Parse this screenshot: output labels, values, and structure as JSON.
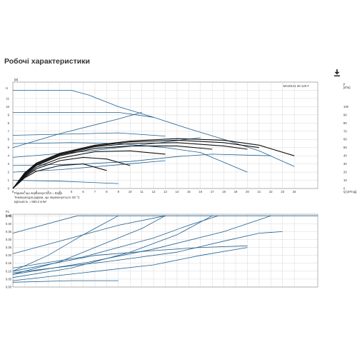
{
  "page": {
    "title": "Робочі характеристики",
    "download_icon": "download-icon"
  },
  "chart_data": [
    {
      "type": "line",
      "name": "head-flow",
      "xlabel": "Q [м³/год]",
      "ylabel_left": "H [м]",
      "ylabel_right": "p [кПа]",
      "legend_text": "MAGNA1 40-120 F",
      "x_ticks": [
        "0",
        "1",
        "2",
        "3",
        "4",
        "5",
        "6",
        "7",
        "8",
        "9",
        "10",
        "11",
        "12",
        "13",
        "14",
        "15",
        "16",
        "17",
        "18",
        "19",
        "20",
        "21",
        "22",
        "23",
        "24"
      ],
      "y_ticks": [
        "0",
        "1",
        "2",
        "3",
        "4",
        "5",
        "6",
        "7",
        "8",
        "9",
        "10",
        "11",
        "12",
        "13"
      ],
      "y2_ticks": [
        "0",
        "10",
        "20",
        "30",
        "40",
        "50",
        "60",
        "70",
        "80",
        "90",
        "100"
      ],
      "xlim": [
        0,
        26
      ],
      "ylim": [
        0,
        13
      ],
      "y2lim": [
        0,
        130
      ],
      "series": [
        {
          "points": [
            [
              0,
              12
            ],
            [
              5,
              12
            ],
            [
              6.5,
              11.4
            ],
            [
              9,
              10
            ],
            [
              12,
              8.7
            ],
            [
              15,
              7.3
            ],
            [
              18,
              6
            ],
            [
              21,
              4.6
            ],
            [
              24,
              2.7
            ]
          ],
          "color": "#1f5f8f"
        },
        {
          "points": [
            [
              0,
              9.3
            ],
            [
              9,
              9.3
            ],
            [
              12,
              8.7
            ]
          ],
          "color": "#1f5f8f"
        },
        {
          "points": [
            [
              0,
              5
            ],
            [
              4,
              6.7
            ],
            [
              9,
              8.5
            ],
            [
              11,
              9.3
            ]
          ],
          "color": "#1f5f8f"
        },
        {
          "points": [
            [
              0,
              6.5
            ],
            [
              9,
              6.8
            ],
            [
              13,
              6.4
            ]
          ],
          "color": "#1f5f8f"
        },
        {
          "points": [
            [
              0,
              5.5
            ],
            [
              5,
              5.6
            ],
            [
              9,
              5.5
            ],
            [
              13,
              5
            ],
            [
              16,
              4.4
            ],
            [
              20,
              2
            ]
          ],
          "color": "#1f5f8f"
        },
        {
          "points": [
            [
              0,
              3.8
            ],
            [
              6,
              4.5
            ],
            [
              12,
              5.5
            ],
            [
              16,
              6.2
            ]
          ],
          "color": "#1f5f8f"
        },
        {
          "points": [
            [
              0,
              2.8
            ],
            [
              6,
              3
            ],
            [
              10,
              3.3
            ],
            [
              14,
              3.9
            ],
            [
              17,
              4.2
            ],
            [
              22,
              4
            ]
          ],
          "color": "#1f5f8f"
        },
        {
          "points": [
            [
              0,
              2
            ],
            [
              4,
              2.3
            ],
            [
              9,
              2.9
            ],
            [
              13,
              3.4
            ]
          ],
          "color": "#1f5f8f"
        },
        {
          "points": [
            [
              0,
              1
            ],
            [
              4,
              0.9
            ],
            [
              9,
              0.6
            ]
          ],
          "color": "#1f5f8f"
        },
        {
          "points": [
            [
              0,
              0
            ],
            [
              1,
              1.9
            ],
            [
              2,
              3.1
            ],
            [
              4,
              4.3
            ],
            [
              7,
              5.3
            ],
            [
              10,
              5.8
            ],
            [
              14,
              6.1
            ],
            [
              18,
              5.9
            ],
            [
              21,
              5.3
            ],
            [
              24,
              4
            ]
          ],
          "color": "#111111"
        },
        {
          "points": [
            [
              0,
              0
            ],
            [
              1,
              1.8
            ],
            [
              2,
              3
            ],
            [
              4,
              4.2
            ],
            [
              7,
              5.2
            ],
            [
              10,
              5.7
            ],
            [
              14,
              5.9
            ],
            [
              18,
              5.6
            ],
            [
              21,
              5
            ]
          ],
          "color": "#111111"
        },
        {
          "points": [
            [
              0,
              0
            ],
            [
              1,
              1.7
            ],
            [
              2,
              2.9
            ],
            [
              4,
              4.1
            ],
            [
              7,
              5.1
            ],
            [
              10,
              5.5
            ],
            [
              14,
              5.6
            ],
            [
              18,
              5.2
            ],
            [
              20,
              4.8
            ]
          ],
          "color": "#111111"
        },
        {
          "points": [
            [
              0,
              0
            ],
            [
              1,
              1.6
            ],
            [
              2,
              2.8
            ],
            [
              4,
              4
            ],
            [
              7,
              4.9
            ],
            [
              10,
              5.2
            ],
            [
              14,
              5.2
            ],
            [
              17,
              4.8
            ]
          ],
          "color": "#111111"
        },
        {
          "points": [
            [
              0,
              0
            ],
            [
              1,
              1.5
            ],
            [
              2,
              2.6
            ],
            [
              4,
              3.7
            ],
            [
              7,
              4.5
            ],
            [
              10,
              4.6
            ],
            [
              13,
              4.2
            ]
          ],
          "color": "#111111"
        },
        {
          "points": [
            [
              0,
              0
            ],
            [
              1,
              1.4
            ],
            [
              2,
              2.4
            ],
            [
              4,
              3.4
            ],
            [
              6,
              3.8
            ],
            [
              8,
              3.6
            ],
            [
              10,
              2.8
            ]
          ],
          "color": "#111111"
        },
        {
          "points": [
            [
              0,
              0
            ],
            [
              1,
              1.3
            ],
            [
              2,
              2.1
            ],
            [
              4,
              2.8
            ],
            [
              6,
              3
            ],
            [
              8,
              2.2
            ]
          ],
          "color": "#111111"
        }
      ],
      "notes": [
        "Рідина, що перекачується = Вода",
        "Температура рідини, що перекачується: 60 °C",
        "Щільність = 983.2 кг/м³"
      ]
    },
    {
      "type": "line",
      "name": "power-flow",
      "ylabel": "P1 [kW]",
      "y_ticks": [
        "0.00",
        "0.05",
        "0.10",
        "0.15",
        "0.20",
        "0.25",
        "0.30",
        "0.35",
        "0.40",
        "0.45"
      ],
      "ylim": [
        0,
        0.46
      ],
      "xlim": [
        0,
        26
      ],
      "series": [
        {
          "points": [
            [
              0,
              0.34
            ],
            [
              5.5,
              0.45
            ],
            [
              26,
              0.45
            ]
          ],
          "color": "#1f5f8f"
        },
        {
          "points": [
            [
              0,
              0.1
            ],
            [
              3,
              0.2
            ],
            [
              6,
              0.33
            ],
            [
              9,
              0.45
            ]
          ],
          "color": "#1f5f8f"
        },
        {
          "points": [
            [
              0,
              0.08
            ],
            [
              4,
              0.16
            ],
            [
              8,
              0.28
            ],
            [
              11,
              0.37
            ],
            [
              13,
              0.45
            ]
          ],
          "color": "#1f5f8f"
        },
        {
          "points": [
            [
              0,
              0.06
            ],
            [
              5,
              0.12
            ],
            [
              10,
              0.22
            ],
            [
              14,
              0.33
            ],
            [
              17,
              0.45
            ]
          ],
          "color": "#1f5f8f"
        },
        {
          "points": [
            [
              0,
              0.12
            ],
            [
              6,
              0.19
            ],
            [
              12,
              0.31
            ],
            [
              15,
              0.39
            ],
            [
              17.5,
              0.45
            ]
          ],
          "color": "#1f5f8f"
        },
        {
          "points": [
            [
              0,
              0.08
            ],
            [
              6,
              0.15
            ],
            [
              12,
              0.24
            ],
            [
              18,
              0.35
            ],
            [
              22,
              0.45
            ]
          ],
          "color": "#1f5f8f"
        },
        {
          "points": [
            [
              0,
              0.21
            ],
            [
              4,
              0.29
            ],
            [
              9,
              0.39
            ],
            [
              13,
              0.45
            ]
          ],
          "color": "#1f5f8f"
        },
        {
          "points": [
            [
              0,
              0.1
            ],
            [
              7,
              0.2
            ],
            [
              12,
              0.23
            ],
            [
              16,
              0.25
            ],
            [
              20,
              0.26
            ]
          ],
          "color": "#1f5f8f"
        },
        {
          "points": [
            [
              0,
              0.09
            ],
            [
              8,
              0.16
            ],
            [
              14,
              0.22
            ],
            [
              18,
              0.29
            ],
            [
              21,
              0.34
            ],
            [
              23,
              0.35
            ]
          ],
          "color": "#1f5f8f"
        },
        {
          "points": [
            [
              0,
              0.04
            ],
            [
              6,
              0.09
            ],
            [
              12,
              0.14
            ],
            [
              16,
              0.2
            ],
            [
              20,
              0.25
            ]
          ],
          "color": "#1f5f8f"
        },
        {
          "points": [
            [
              0,
              0.03
            ],
            [
              5,
              0.04
            ],
            [
              9,
              0.04
            ]
          ],
          "color": "#1f5f8f"
        }
      ]
    }
  ]
}
